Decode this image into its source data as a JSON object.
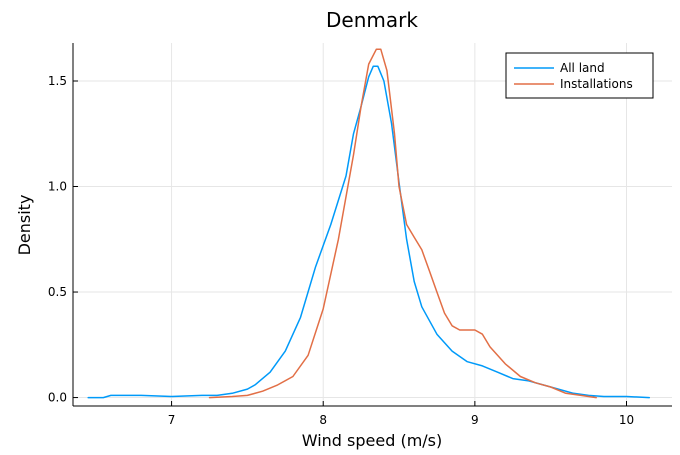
{
  "chart_data": {
    "type": "line",
    "title": "Denmark",
    "xlabel": "Wind speed (m/s)",
    "ylabel": "Density",
    "xlim": [
      6.35,
      10.3
    ],
    "ylim": [
      -0.04,
      1.68
    ],
    "xticks": [
      7,
      8,
      9,
      10
    ],
    "xtick_labels": [
      "7",
      "8",
      "9",
      "10"
    ],
    "yticks": [
      0.0,
      0.5,
      1.0,
      1.5
    ],
    "ytick_labels": [
      "0.0",
      "0.5",
      "1.0",
      "1.5"
    ],
    "grid": true,
    "legend_position": "top-right",
    "series": [
      {
        "name": "All land",
        "color": "#009af9",
        "x": [
          6.45,
          6.55,
          6.6,
          6.8,
          7.0,
          7.2,
          7.3,
          7.4,
          7.5,
          7.55,
          7.65,
          7.75,
          7.85,
          7.95,
          8.05,
          8.15,
          8.2,
          8.25,
          8.3,
          8.33,
          8.36,
          8.4,
          8.45,
          8.5,
          8.55,
          8.6,
          8.65,
          8.75,
          8.85,
          8.95,
          9.05,
          9.15,
          9.25,
          9.35,
          9.45,
          9.55,
          9.65,
          9.75,
          9.85,
          10.0,
          10.15
        ],
        "y": [
          0.0,
          0.0,
          0.01,
          0.01,
          0.005,
          0.01,
          0.01,
          0.02,
          0.04,
          0.06,
          0.12,
          0.22,
          0.38,
          0.62,
          0.82,
          1.05,
          1.25,
          1.38,
          1.52,
          1.57,
          1.57,
          1.5,
          1.3,
          1.02,
          0.75,
          0.55,
          0.43,
          0.3,
          0.22,
          0.17,
          0.15,
          0.12,
          0.09,
          0.08,
          0.06,
          0.04,
          0.02,
          0.01,
          0.005,
          0.005,
          0.0
        ]
      },
      {
        "name": "Installations",
        "color": "#e26f46",
        "x": [
          7.25,
          7.4,
          7.5,
          7.6,
          7.7,
          7.8,
          7.9,
          8.0,
          8.1,
          8.2,
          8.25,
          8.3,
          8.35,
          8.38,
          8.42,
          8.47,
          8.5,
          8.55,
          8.6,
          8.65,
          8.7,
          8.75,
          8.8,
          8.85,
          8.9,
          8.95,
          9.0,
          9.05,
          9.1,
          9.2,
          9.3,
          9.4,
          9.5,
          9.6,
          9.7,
          9.8
        ],
        "y": [
          0.0,
          0.005,
          0.01,
          0.03,
          0.06,
          0.1,
          0.2,
          0.42,
          0.75,
          1.15,
          1.38,
          1.58,
          1.65,
          1.65,
          1.55,
          1.25,
          1.0,
          0.82,
          0.76,
          0.7,
          0.6,
          0.5,
          0.4,
          0.34,
          0.32,
          0.32,
          0.32,
          0.3,
          0.24,
          0.16,
          0.1,
          0.07,
          0.05,
          0.02,
          0.01,
          0.0
        ]
      }
    ]
  }
}
